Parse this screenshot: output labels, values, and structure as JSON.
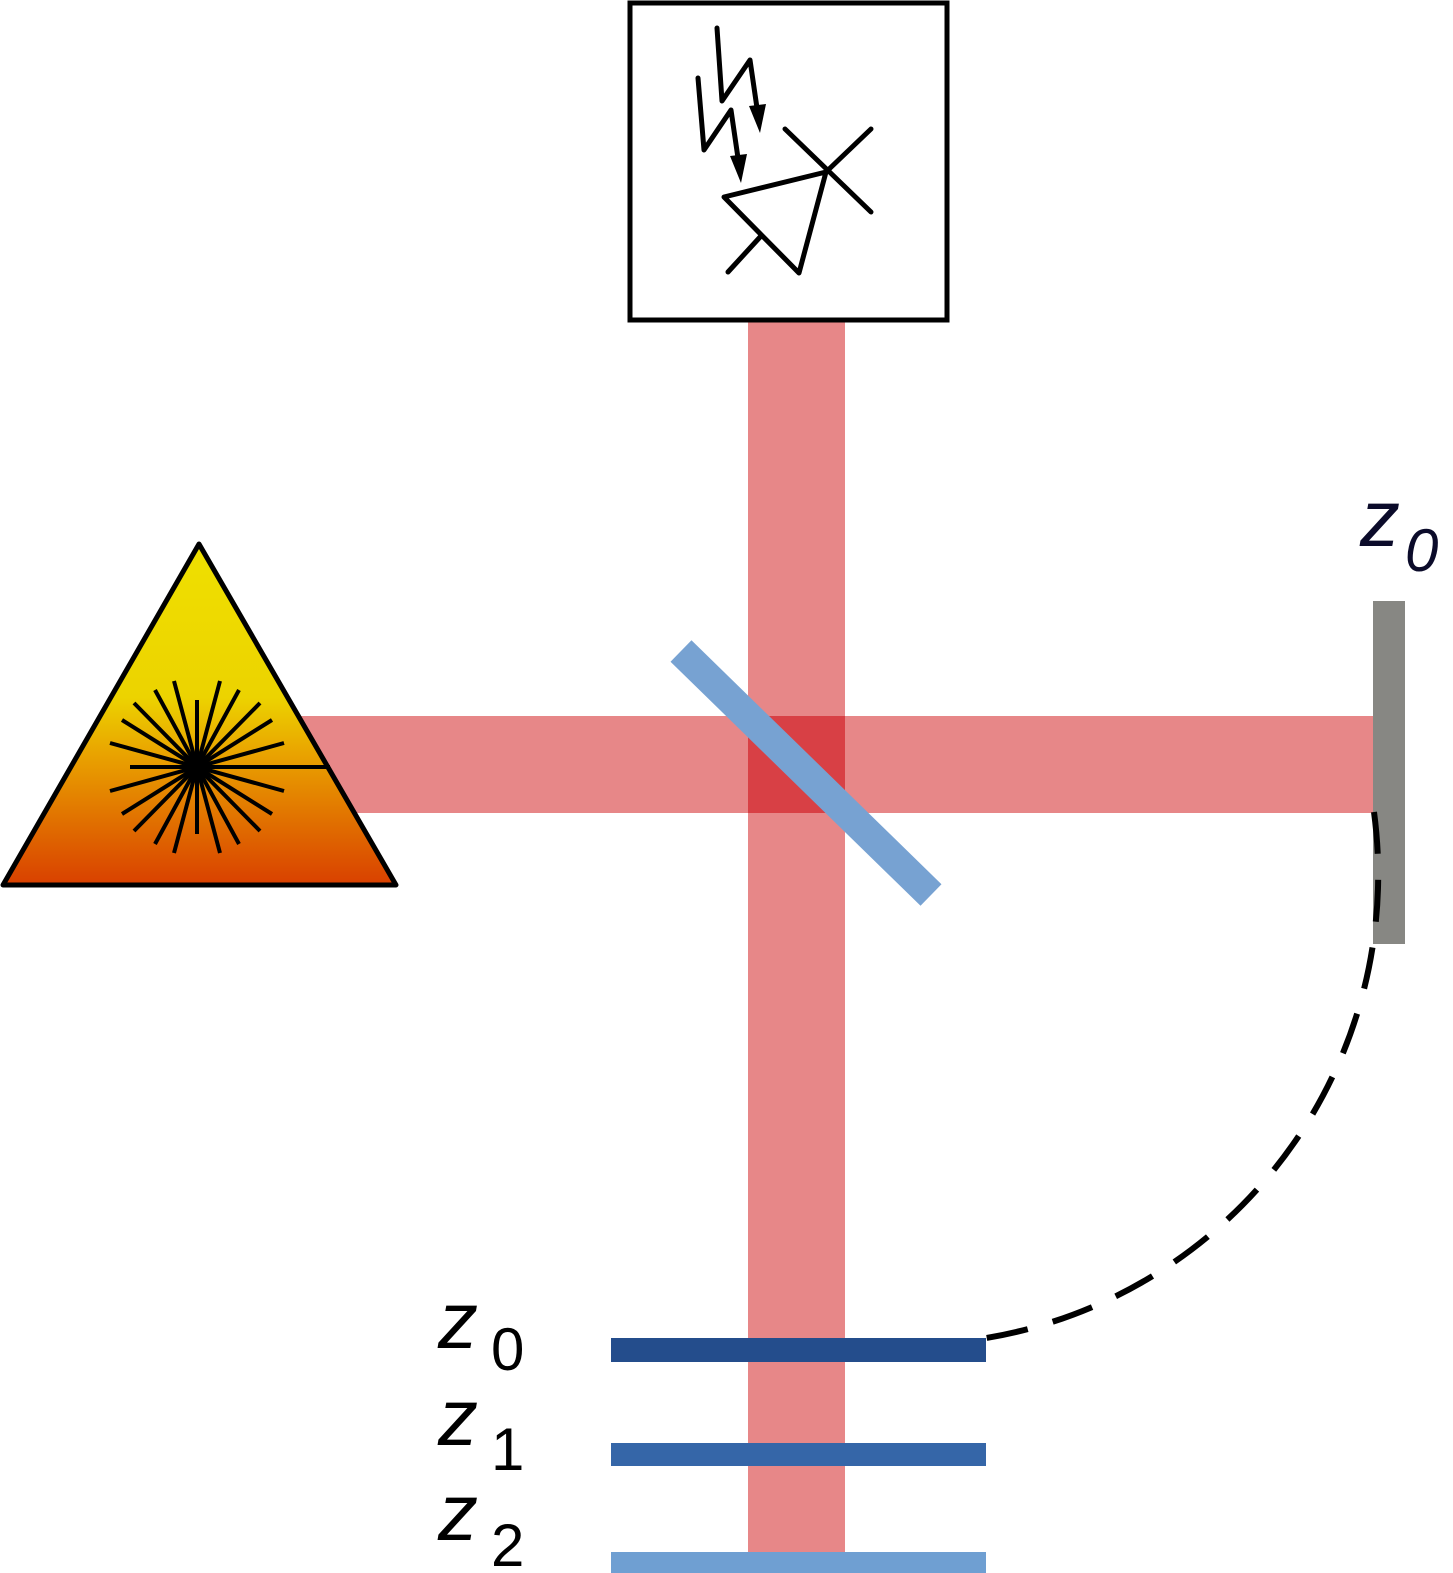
{
  "labels": {
    "reference_mirror": {
      "symbol": "z",
      "subscript": "0"
    },
    "sample_planes": [
      {
        "symbol": "z",
        "subscript": "0"
      },
      {
        "symbol": "z",
        "subscript": "1"
      },
      {
        "symbol": "z",
        "subscript": "2"
      }
    ]
  },
  "icons": {
    "light_source": "laser-warning-icon",
    "detector": "photodiode-icon"
  },
  "colors": {
    "beam": "#e78788",
    "beam_overlap": "#d84045",
    "beam_splitter": "#77a2d2",
    "reference_mirror": "#878783",
    "plane_z0": "#244d8c",
    "plane_z1": "#3566a8",
    "plane_z2": "#6f9fd2",
    "laser_top": "#ecd300",
    "laser_bottom": "#d94000"
  }
}
